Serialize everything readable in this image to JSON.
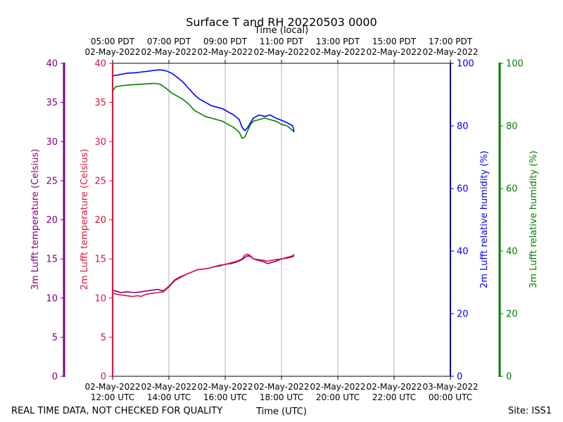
{
  "chart_data": {
    "type": "line",
    "title": "Surface T and RH 20220503 0000",
    "xlabel_bottom": "Time (UTC)",
    "xlabel_top": "Time (local)",
    "footer_left": "REAL TIME DATA, NOT CHECKED FOR QUALITY",
    "footer_right": "Site: ISS1",
    "x_range_hours_utc": [
      12,
      24
    ],
    "x_ticks_bottom": [
      {
        "h": 12,
        "line1": "02-May-2022",
        "line2": "12:00 UTC"
      },
      {
        "h": 14,
        "line1": "02-May-2022",
        "line2": "14:00 UTC"
      },
      {
        "h": 16,
        "line1": "02-May-2022",
        "line2": "16:00 UTC"
      },
      {
        "h": 18,
        "line1": "02-May-2022",
        "line2": "18:00 UTC"
      },
      {
        "h": 20,
        "line1": "02-May-2022",
        "line2": "20:00 UTC"
      },
      {
        "h": 22,
        "line1": "02-May-2022",
        "line2": "22:00 UTC"
      },
      {
        "h": 24,
        "line1": "03-May-2022",
        "line2": "00:00 UTC"
      }
    ],
    "x_ticks_top": [
      {
        "h": 12,
        "line1": "05:00 PDT",
        "line2": "02-May-2022"
      },
      {
        "h": 14,
        "line1": "07:00 PDT",
        "line2": "02-May-2022"
      },
      {
        "h": 16,
        "line1": "09:00 PDT",
        "line2": "02-May-2022"
      },
      {
        "h": 18,
        "line1": "11:00 PDT",
        "line2": "02-May-2022"
      },
      {
        "h": 20,
        "line1": "13:00 PDT",
        "line2": "02-May-2022"
      },
      {
        "h": 22,
        "line1": "15:00 PDT",
        "line2": "02-May-2022"
      },
      {
        "h": 24,
        "line1": "17:00 PDT",
        "line2": "02-May-2022"
      }
    ],
    "axes": {
      "temp3m": {
        "label": "3m Lufft temperature (Celsius)",
        "color": "#800080",
        "ylim": [
          0,
          40
        ],
        "ticks": [
          0,
          5,
          10,
          15,
          20,
          25,
          30,
          35,
          40
        ]
      },
      "temp2m": {
        "label": "2m Lufft temperature (Celsius)",
        "color": "#dc143c",
        "ylim": [
          0,
          40
        ],
        "ticks": [
          0,
          5,
          10,
          15,
          20,
          25,
          30,
          35,
          40
        ]
      },
      "rh2m": {
        "label": "2m Lufft relative humidity (%)",
        "color": "#0000ff",
        "axis_color": "#00008b",
        "ylim": [
          0,
          100
        ],
        "ticks": [
          0,
          20,
          40,
          60,
          80,
          100
        ]
      },
      "rh3m": {
        "label": "3m Lufft relative humidity (%)",
        "color": "#008000",
        "ylim": [
          0,
          100
        ],
        "ticks": [
          0,
          20,
          40,
          60,
          80,
          100
        ]
      }
    },
    "series": [
      {
        "name": "3m Lufft temperature",
        "axis": "temp3m",
        "color": "#800080",
        "x": [
          12.0,
          12.1,
          12.3,
          12.5,
          12.8,
          13.0,
          13.2,
          13.4,
          13.6,
          13.8,
          14.0,
          14.2,
          14.4,
          14.6,
          14.8,
          15.0,
          15.2,
          15.4,
          15.6,
          15.8,
          16.0,
          16.2,
          16.4,
          16.6,
          16.7,
          16.8,
          16.9,
          17.0,
          17.2,
          17.4,
          17.5,
          17.6,
          17.8,
          18.0,
          18.2,
          18.4,
          18.45
        ],
        "y": [
          11.0,
          10.9,
          10.7,
          10.8,
          10.7,
          10.8,
          10.9,
          11.0,
          11.1,
          10.9,
          11.5,
          12.3,
          12.7,
          13.0,
          13.3,
          13.6,
          13.7,
          13.8,
          14.0,
          14.1,
          14.3,
          14.4,
          14.6,
          14.9,
          15.2,
          15.4,
          15.3,
          15.0,
          14.8,
          14.6,
          14.4,
          14.5,
          14.7,
          15.0,
          15.1,
          15.3,
          15.4
        ]
      },
      {
        "name": "2m Lufft temperature",
        "axis": "temp2m",
        "color": "#dc143c",
        "x": [
          12.0,
          12.1,
          12.3,
          12.5,
          12.7,
          12.9,
          13.0,
          13.2,
          13.4,
          13.6,
          13.8,
          14.0,
          14.2,
          14.4,
          14.6,
          14.8,
          15.0,
          15.2,
          15.4,
          15.6,
          15.8,
          16.0,
          16.2,
          16.4,
          16.6,
          16.7,
          16.8,
          16.9,
          17.0,
          17.2,
          17.4,
          17.5,
          17.6,
          17.8,
          18.0,
          18.2,
          18.4,
          18.45
        ],
        "y": [
          10.7,
          10.5,
          10.4,
          10.3,
          10.2,
          10.3,
          10.2,
          10.5,
          10.6,
          10.7,
          10.8,
          11.4,
          12.2,
          12.6,
          13.0,
          13.3,
          13.6,
          13.7,
          13.8,
          14.0,
          14.2,
          14.3,
          14.5,
          14.7,
          15.0,
          15.5,
          15.6,
          15.4,
          15.0,
          14.9,
          14.8,
          14.7,
          14.8,
          14.9,
          15.0,
          15.2,
          15.4,
          15.6
        ]
      },
      {
        "name": "2m Lufft relative humidity",
        "axis": "rh2m",
        "color": "#0000ff",
        "x": [
          12.0,
          12.2,
          12.5,
          12.8,
          13.0,
          13.3,
          13.5,
          13.7,
          13.9,
          14.1,
          14.3,
          14.5,
          14.7,
          14.9,
          15.1,
          15.3,
          15.5,
          15.7,
          15.9,
          16.1,
          16.3,
          16.5,
          16.6,
          16.7,
          16.8,
          16.9,
          17.0,
          17.2,
          17.4,
          17.6,
          17.8,
          18.0,
          18.2,
          18.4,
          18.45
        ],
        "y": [
          96.0,
          96.3,
          96.8,
          97.0,
          97.2,
          97.5,
          97.8,
          97.9,
          97.6,
          96.8,
          95.5,
          94.0,
          92.0,
          90.0,
          88.5,
          87.5,
          86.5,
          86.0,
          85.5,
          84.5,
          83.5,
          82.0,
          79.5,
          78.5,
          79.5,
          81.0,
          82.5,
          83.5,
          83.0,
          83.5,
          82.5,
          81.8,
          81.0,
          80.0,
          78.0
        ]
      },
      {
        "name": "3m Lufft relative humidity",
        "axis": "rh3m",
        "color": "#008000",
        "x": [
          12.0,
          12.1,
          12.3,
          12.5,
          12.8,
          13.0,
          13.3,
          13.5,
          13.7,
          13.9,
          14.1,
          14.3,
          14.5,
          14.7,
          14.9,
          15.1,
          15.3,
          15.5,
          15.7,
          15.9,
          16.1,
          16.3,
          16.5,
          16.6,
          16.7,
          16.8,
          16.9,
          17.0,
          17.2,
          17.4,
          17.6,
          17.8,
          18.0,
          18.2,
          18.4,
          18.45
        ],
        "y": [
          91.0,
          92.5,
          92.8,
          93.0,
          93.2,
          93.3,
          93.5,
          93.6,
          93.3,
          92.0,
          90.5,
          89.5,
          88.5,
          87.0,
          85.0,
          84.0,
          83.0,
          82.5,
          82.0,
          81.5,
          80.5,
          79.5,
          78.0,
          76.0,
          76.5,
          78.5,
          80.5,
          81.5,
          82.0,
          82.5,
          82.0,
          81.5,
          80.5,
          80.0,
          78.5,
          78.0
        ]
      }
    ]
  }
}
